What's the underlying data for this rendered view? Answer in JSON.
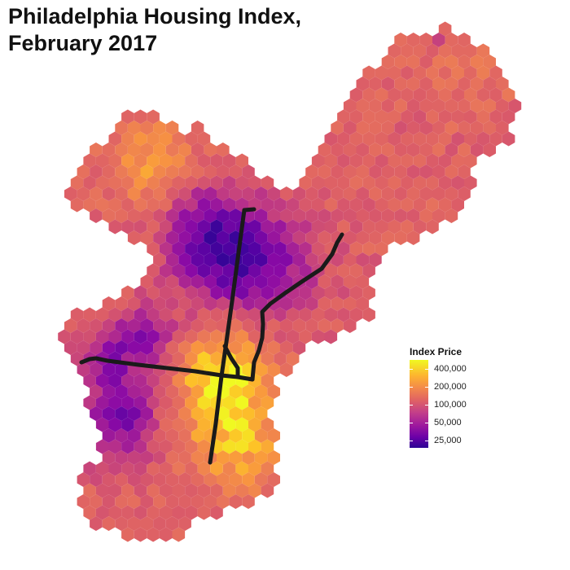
{
  "title": {
    "line1": "Philadelphia Housing Index,",
    "line2": "February 2017"
  },
  "legend": {
    "title": "Index Price",
    "labels": [
      "400,000",
      "200,000",
      "100,000",
      "50,000",
      "25,000"
    ],
    "scale_breaks": [
      400000,
      200000,
      100000,
      50000,
      25000
    ],
    "color_scale": [
      "#0d0887",
      "#6a00a8",
      "#b12a90",
      "#e16462",
      "#fca636",
      "#f0f921"
    ]
  },
  "map": {
    "fill_type": "hexbin",
    "outline": "none",
    "rail_line_color": "#1a1a1a"
  }
}
